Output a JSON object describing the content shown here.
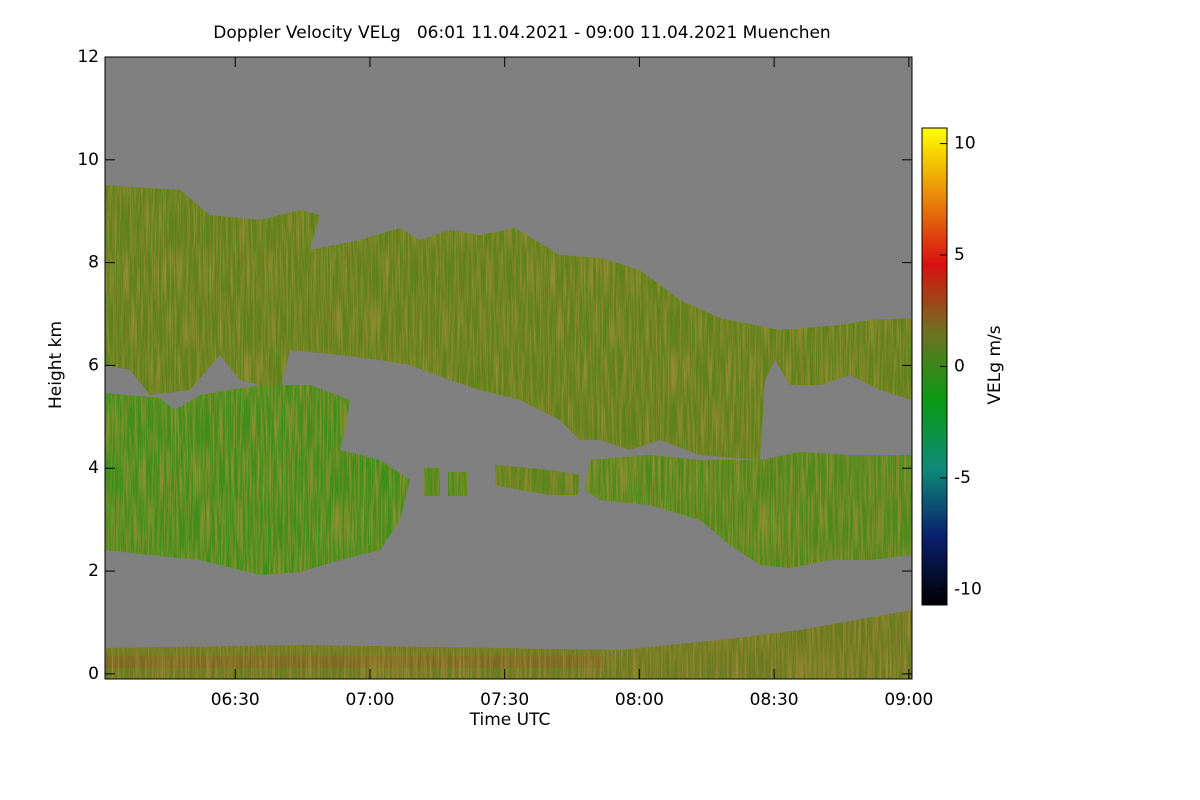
{
  "chart_data": {
    "type": "heatmap",
    "title": "Doppler Velocity VELg   06:01 11.04.2021 - 09:00 11.04.2021 Muenchen",
    "xlabel": "Time UTC",
    "ylabel": "Height km",
    "colorbar_label": "VELg m/s",
    "xlim": [
      361,
      540.7
    ],
    "xticks": [
      {
        "value": 390,
        "label": "06:30"
      },
      {
        "value": 420,
        "label": "07:00"
      },
      {
        "value": 450,
        "label": "07:30"
      },
      {
        "value": 480,
        "label": "08:00"
      },
      {
        "value": 510,
        "label": "08:30"
      },
      {
        "value": 540,
        "label": "09:00"
      }
    ],
    "ylim": [
      -0.1,
      12
    ],
    "yticks": [
      0,
      2,
      4,
      6,
      8,
      10,
      12
    ],
    "colorbar_lim": [
      -10.7,
      10.7
    ],
    "colorbar_ticks": [
      -10,
      -5,
      0,
      5,
      10
    ],
    "colormap": [
      "#000000",
      "#0a1f6e",
      "#0e8a78",
      "#0a9a14",
      "#6e7220",
      "#d81010",
      "#e88a0a",
      "#ffff00"
    ],
    "background_color": "#808080"
  }
}
